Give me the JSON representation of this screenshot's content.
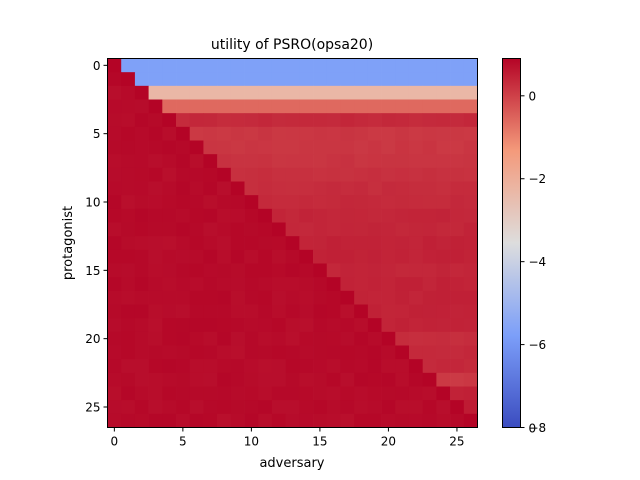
{
  "chart_data": {
    "type": "heatmap",
    "title": "utility of PSRO(opsa20)",
    "xlabel": "adversary",
    "ylabel": "protagonist",
    "rows": 27,
    "cols": 27,
    "xlim": [
      -0.5,
      26.5
    ],
    "ylim": [
      26.5,
      -0.5
    ],
    "x_ticks": [
      "0",
      "5",
      "10",
      "15",
      "20",
      "25"
    ],
    "y_ticks": [
      "0",
      "5",
      "10",
      "15",
      "20",
      "25"
    ],
    "colormap": "coolwarm",
    "color_range": [
      -8,
      0.9
    ],
    "colorbar_ticks": [
      "0",
      "−2",
      "−4",
      "−6",
      "−8"
    ],
    "colorbar_tick_values": [
      0,
      -2,
      -4,
      -6,
      -8
    ],
    "colorbar_extra_label": "0",
    "row_far_values": [
      -5.7,
      -5.7,
      -2.3,
      -0.6,
      0.35,
      0.15,
      0.15,
      0.2,
      0.25,
      0.3,
      0.35,
      0.4,
      0.4,
      0.45,
      0.45,
      0.4,
      0.45,
      0.45,
      0.45,
      0.45,
      0.3,
      0.35,
      0.35,
      0.1,
      0.45,
      0.55,
      0.9
    ],
    "near_value": 0.8,
    "diagonal_value": 0.9,
    "grid": false,
    "colors": {
      "low": "#3b4cc0",
      "mid": "#dddddd",
      "high": "#b40426"
    }
  }
}
